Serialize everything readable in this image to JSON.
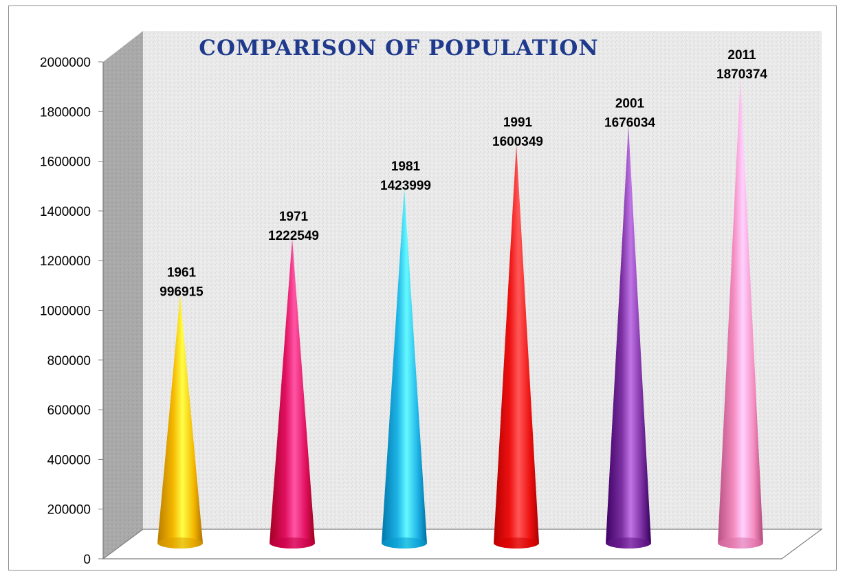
{
  "chart_data": {
    "type": "bar",
    "shape": "cone",
    "title": "COMPARISON OF POPULATION",
    "xlabel": "",
    "ylabel": "",
    "ylim": [
      0,
      2000000
    ],
    "yticks": [
      "0",
      "200000",
      "400000",
      "600000",
      "800000",
      "1000000",
      "1200000",
      "1400000",
      "1600000",
      "1800000",
      "2000000"
    ],
    "grid": false,
    "legend": "none",
    "categories": [
      "1961",
      "1971",
      "1981",
      "1991",
      "2001",
      "2011"
    ],
    "values": [
      996915,
      1222549,
      1423999,
      1600349,
      1676034,
      1870374
    ],
    "colors": [
      "#f5b800",
      "#e0105f",
      "#1eb3e6",
      "#ee1111",
      "#7a2fa0",
      "#f58cc0"
    ]
  }
}
